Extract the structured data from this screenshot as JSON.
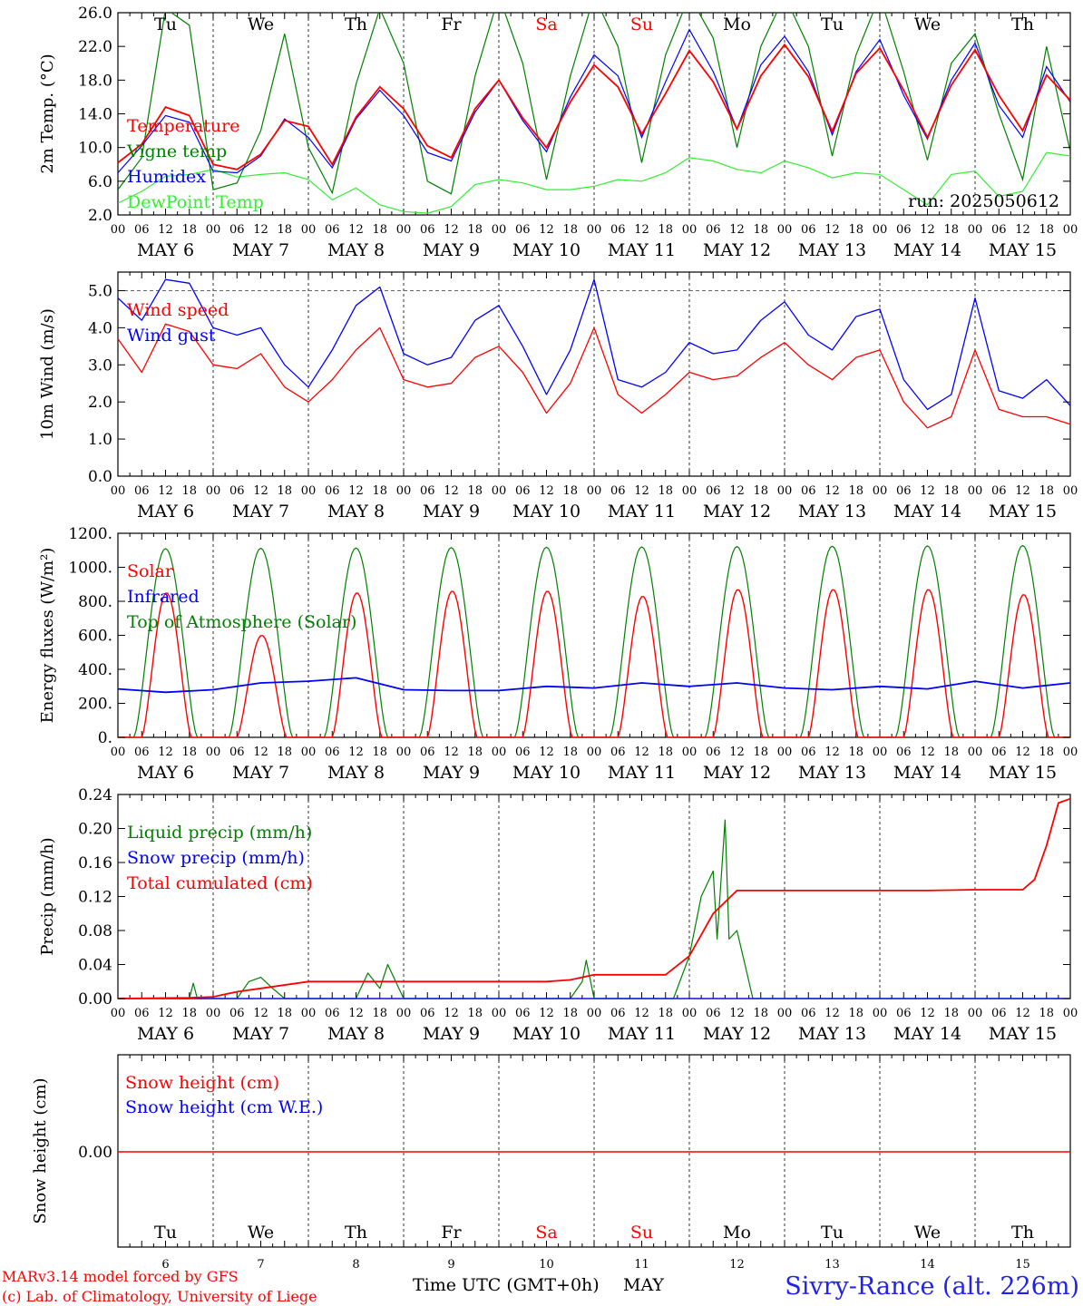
{
  "colors": {
    "red": "#ff0000",
    "green": "#008000",
    "blue": "#0000ff",
    "lightgreen": "#33ee33",
    "black": "#000000"
  },
  "days": {
    "weekday_labels": [
      "Tu",
      "We",
      "Th",
      "Fr",
      "Sa",
      "Su",
      "Mo",
      "Tu",
      "We",
      "Th"
    ],
    "weekend_indices": [
      4,
      5
    ],
    "date_labels": [
      "MAY  6",
      "MAY  7",
      "MAY  8",
      "MAY  9",
      "MAY 10",
      "MAY 11",
      "MAY 12",
      "MAY 13",
      "MAY 14",
      "MAY 15"
    ],
    "day_numbers": [
      "6",
      "7",
      "8",
      "9",
      "10",
      "11",
      "12",
      "13",
      "14",
      "15"
    ],
    "hour_ticks": [
      "00",
      "06",
      "12",
      "18"
    ],
    "final_tick": "00"
  },
  "footer": {
    "model_line": "MARv3.14 model forced by GFS",
    "lab_line": "(c) Lab. of Climatology, University of Liege",
    "axis_title": "Time UTC (GMT+0h)",
    "month": "MAY",
    "station": "Sivry-Rance (alt. 226m)"
  },
  "chart_data": [
    {
      "type": "line",
      "ylabel": "2m Temp. (°C)",
      "ylim": [
        2.0,
        26.0
      ],
      "yticks": [
        "2.0",
        "6.0",
        "10.0",
        "14.0",
        "18.0",
        "22.0",
        "26.0"
      ],
      "ytick_values": [
        2,
        6,
        10,
        14,
        18,
        22,
        26
      ],
      "run_label": "run: 2025050612",
      "x": [
        0,
        6,
        12,
        18,
        24,
        30,
        36,
        42,
        48,
        54,
        60,
        66,
        72,
        78,
        84,
        90,
        96,
        102,
        108,
        114,
        120,
        126,
        132,
        138,
        144,
        150,
        156,
        162,
        168,
        174,
        180,
        186,
        192,
        198,
        204,
        210,
        216,
        222,
        228,
        234,
        240
      ],
      "series": [
        {
          "name": "Temperature",
          "color": "red",
          "values": [
            8.2,
            10.4,
            14.8,
            13.8,
            8.0,
            7.4,
            9.2,
            13.2,
            12.5,
            8.0,
            13.6,
            17.2,
            14.6,
            10.2,
            8.8,
            14.6,
            18.0,
            13.5,
            10.0,
            15.4,
            19.8,
            17.2,
            11.6,
            16.4,
            21.5,
            17.8,
            12.2,
            18.5,
            22.2,
            18.4,
            11.9,
            18.8,
            21.8,
            16.8,
            11.2,
            17.4,
            21.6,
            16.2,
            12.0,
            18.6,
            15.6
          ]
        },
        {
          "name": "Vigne temp",
          "color": "green",
          "values": [
            5.0,
            8.8,
            26.5,
            24.5,
            5.0,
            5.8,
            12.0,
            23.5,
            10.0,
            4.6,
            17.5,
            26.5,
            20.0,
            6.0,
            4.5,
            18.5,
            28.0,
            20.0,
            6.2,
            18.5,
            28.0,
            22.0,
            8.2,
            21.0,
            28.0,
            23.0,
            10.0,
            22.0,
            28.0,
            22.0,
            9.0,
            21.0,
            28.0,
            19.0,
            8.5,
            20.0,
            23.5,
            14.0,
            6.2,
            22.0,
            9.5
          ]
        },
        {
          "name": "Humidex",
          "color": "blue",
          "values": [
            7.0,
            10.2,
            13.8,
            13.0,
            7.2,
            7.0,
            9.0,
            13.4,
            11.2,
            7.6,
            13.4,
            16.8,
            13.8,
            9.4,
            8.4,
            14.2,
            18.0,
            13.2,
            9.5,
            16.0,
            21.0,
            18.5,
            11.2,
            17.8,
            24.0,
            19.0,
            12.2,
            19.8,
            23.2,
            19.0,
            11.5,
            19.0,
            22.8,
            16.2,
            11.0,
            18.0,
            22.4,
            15.0,
            11.2,
            19.6,
            15.4
          ]
        },
        {
          "name": "DewPoint Temp",
          "color": "lightgreen",
          "values": [
            3.4,
            4.8,
            6.6,
            6.8,
            7.4,
            6.5,
            6.8,
            7.0,
            6.2,
            3.8,
            5.2,
            3.2,
            2.4,
            2.2,
            3.0,
            5.6,
            6.2,
            5.8,
            5.0,
            5.0,
            5.4,
            6.2,
            6.0,
            7.0,
            8.8,
            8.4,
            7.4,
            7.0,
            8.4,
            7.6,
            6.4,
            7.0,
            6.8,
            5.0,
            3.2,
            6.8,
            7.2,
            4.2,
            4.8,
            9.4,
            9.0
          ]
        }
      ]
    },
    {
      "type": "line",
      "ylabel": "10m Wind (m/s)",
      "ylim": [
        0.0,
        5.5
      ],
      "yticks": [
        "0.0",
        "1.0",
        "2.0",
        "3.0",
        "4.0",
        "5.0"
      ],
      "ytick_values": [
        0,
        1,
        2,
        3,
        4,
        5
      ],
      "ref_line": 5.0,
      "x": [
        0,
        6,
        12,
        18,
        24,
        30,
        36,
        42,
        48,
        54,
        60,
        66,
        72,
        78,
        84,
        90,
        96,
        102,
        108,
        114,
        120,
        126,
        132,
        138,
        144,
        150,
        156,
        162,
        168,
        174,
        180,
        186,
        192,
        198,
        204,
        210,
        216,
        222,
        228,
        234,
        240
      ],
      "series": [
        {
          "name": "Wind speed",
          "color": "red",
          "values": [
            3.7,
            2.8,
            4.1,
            3.9,
            3.0,
            2.9,
            3.3,
            2.4,
            2.0,
            2.6,
            3.4,
            4.0,
            2.6,
            2.4,
            2.5,
            3.2,
            3.5,
            2.8,
            1.7,
            2.5,
            4.0,
            2.2,
            1.7,
            2.2,
            2.8,
            2.6,
            2.7,
            3.2,
            3.6,
            3.0,
            2.6,
            3.2,
            3.4,
            2.0,
            1.3,
            1.6,
            3.4,
            1.8,
            1.6,
            1.6,
            1.4
          ]
        },
        {
          "name": "Wind gust",
          "color": "blue",
          "values": [
            4.8,
            4.2,
            5.3,
            5.2,
            4.0,
            3.8,
            4.0,
            3.0,
            2.4,
            3.4,
            4.6,
            5.1,
            3.3,
            3.0,
            3.2,
            4.2,
            4.6,
            3.5,
            2.2,
            3.4,
            5.3,
            2.6,
            2.4,
            2.8,
            3.6,
            3.3,
            3.4,
            4.2,
            4.7,
            3.8,
            3.4,
            4.3,
            4.5,
            2.6,
            1.8,
            2.2,
            4.8,
            2.3,
            2.1,
            2.6,
            1.9
          ]
        }
      ]
    },
    {
      "type": "line",
      "ylabel": "Energy fluxes (W/m²)",
      "ylim": [
        0,
        1200
      ],
      "yticks": [
        "0.",
        "200.",
        "400.",
        "600.",
        "800.",
        "1000.",
        "1200."
      ],
      "ytick_values": [
        0,
        200,
        400,
        600,
        800,
        1000,
        1200
      ],
      "daily_peaks": {
        "top_of_atmosphere": [
          1110,
          1112,
          1114,
          1116,
          1118,
          1120,
          1122,
          1124,
          1126,
          1128
        ],
        "solar": [
          850,
          600,
          850,
          860,
          860,
          830,
          870,
          870,
          870,
          840
        ]
      },
      "series": [
        {
          "name": "Solar",
          "color": "red"
        },
        {
          "name": "Infrared",
          "color": "blue",
          "x": [
            0,
            12,
            24,
            36,
            48,
            60,
            72,
            84,
            96,
            108,
            120,
            132,
            144,
            156,
            168,
            180,
            192,
            204,
            216,
            228,
            240
          ],
          "values": [
            285,
            265,
            280,
            320,
            330,
            350,
            280,
            275,
            275,
            300,
            290,
            320,
            300,
            320,
            290,
            280,
            300,
            285,
            330,
            290,
            320
          ]
        },
        {
          "name": "Top of Atmosphere (Solar)",
          "color": "green"
        }
      ]
    },
    {
      "type": "line",
      "ylabel": "Precip (mm/h)",
      "ylim": [
        0.0,
        0.24
      ],
      "yticks": [
        "0.00",
        "0.04",
        "0.08",
        "0.12",
        "0.16",
        "0.20",
        "0.24"
      ],
      "ytick_values": [
        0,
        0.04,
        0.08,
        0.12,
        0.16,
        0.2,
        0.24
      ],
      "series": [
        {
          "name": "Liquid precip (mm/h)",
          "color": "green",
          "x": [
            0,
            18,
            19,
            20,
            30,
            33,
            36,
            39,
            42,
            45,
            60,
            63,
            66,
            68,
            72,
            114,
            117,
            118,
            120,
            140,
            144,
            147,
            150,
            151,
            153,
            154,
            156,
            158,
            160,
            162,
            240
          ],
          "values": [
            0,
            0,
            0.018,
            0,
            0,
            0.02,
            0.025,
            0.012,
            0,
            0,
            0,
            0.03,
            0.012,
            0.04,
            0,
            0,
            0.02,
            0.045,
            0,
            0,
            0.05,
            0.12,
            0.15,
            0.07,
            0.21,
            0.07,
            0.08,
            0.04,
            0,
            0,
            0
          ]
        },
        {
          "name": "Snow precip (mm/h)",
          "color": "blue",
          "x": [
            0,
            240
          ],
          "values": [
            0,
            0
          ]
        },
        {
          "name": "Total cumulated (cm)",
          "color": "red",
          "x": [
            0,
            18,
            24,
            30,
            36,
            48,
            60,
            72,
            84,
            96,
            108,
            114,
            120,
            138,
            144,
            150,
            156,
            168,
            180,
            192,
            204,
            216,
            228,
            231,
            234,
            237,
            240
          ],
          "values": [
            0,
            0.001,
            0.002,
            0.008,
            0.012,
            0.02,
            0.02,
            0.02,
            0.02,
            0.02,
            0.02,
            0.022,
            0.028,
            0.028,
            0.05,
            0.1,
            0.127,
            0.127,
            0.127,
            0.127,
            0.127,
            0.128,
            0.128,
            0.14,
            0.18,
            0.23,
            0.235
          ]
        }
      ]
    },
    {
      "type": "line",
      "ylabel": "Snow height (cm)",
      "yticks": [
        "0.00"
      ],
      "series": [
        {
          "name": "Snow height (cm)",
          "color": "red",
          "x": [
            0,
            240
          ],
          "values": [
            0,
            0
          ]
        },
        {
          "name": "Snow height (cm W.E.)",
          "color": "blue"
        }
      ]
    }
  ]
}
